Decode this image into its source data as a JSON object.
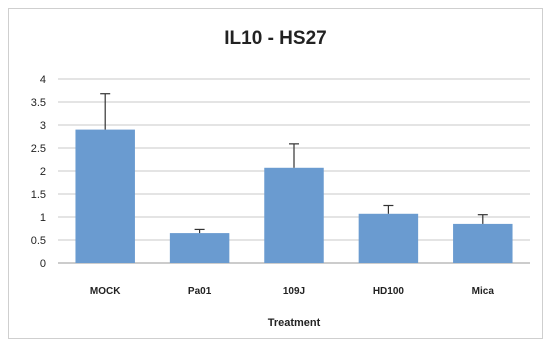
{
  "chart_data": {
    "type": "bar",
    "title": "IL10 - HS27",
    "xlabel": "Treatment",
    "ylabel": "",
    "categories": [
      "MOCK",
      "Pa01",
      "109J",
      "HD100",
      "Mica"
    ],
    "values": [
      2.9,
      0.65,
      2.07,
      1.07,
      0.85
    ],
    "errors": [
      0.78,
      0.08,
      0.52,
      0.18,
      0.2
    ],
    "ylim": [
      0,
      4
    ],
    "yticks": [
      "0",
      "0.5",
      "1",
      "1.5",
      "2",
      "2.5",
      "3",
      "3.5",
      "4"
    ],
    "grid": true,
    "legend": "none",
    "bar_color": "#6a9bd0",
    "error_color": "#333333"
  }
}
